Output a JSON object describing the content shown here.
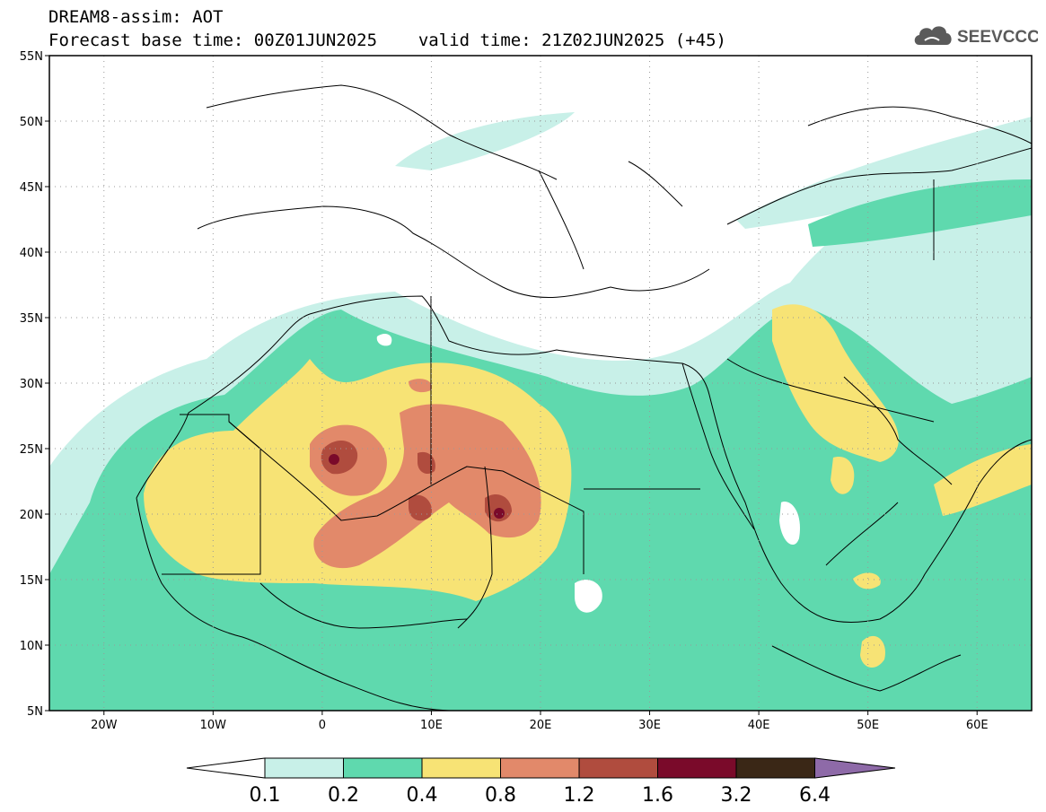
{
  "header": {
    "title": "DREAM8-assim: AOT",
    "base_time_label": "Forecast base time: 00Z01JUN2025",
    "valid_time_label": "valid time: 21Z02JUN2025 (+45)"
  },
  "logo": {
    "text": "SEEVCCC",
    "icon": "cloud-icon"
  },
  "axes": {
    "lat_labels": [
      "55N",
      "50N",
      "45N",
      "40N",
      "35N",
      "30N",
      "25N",
      "20N",
      "15N",
      "10N",
      "5N"
    ],
    "lon_labels": [
      "20W",
      "10W",
      "0",
      "10E",
      "20E",
      "30E",
      "40E",
      "50E",
      "60E"
    ]
  },
  "colorbar": {
    "labels": [
      "0.1",
      "0.2",
      "0.4",
      "0.8",
      "1.2",
      "1.6",
      "3.2",
      "6.4"
    ],
    "colors": [
      "#ffffff",
      "#c8f0e8",
      "#5fd9ae",
      "#f7e375",
      "#e2896a",
      "#b04c3e",
      "#7a0a2a",
      "#3a2716",
      "#8e6aa8"
    ]
  }
}
